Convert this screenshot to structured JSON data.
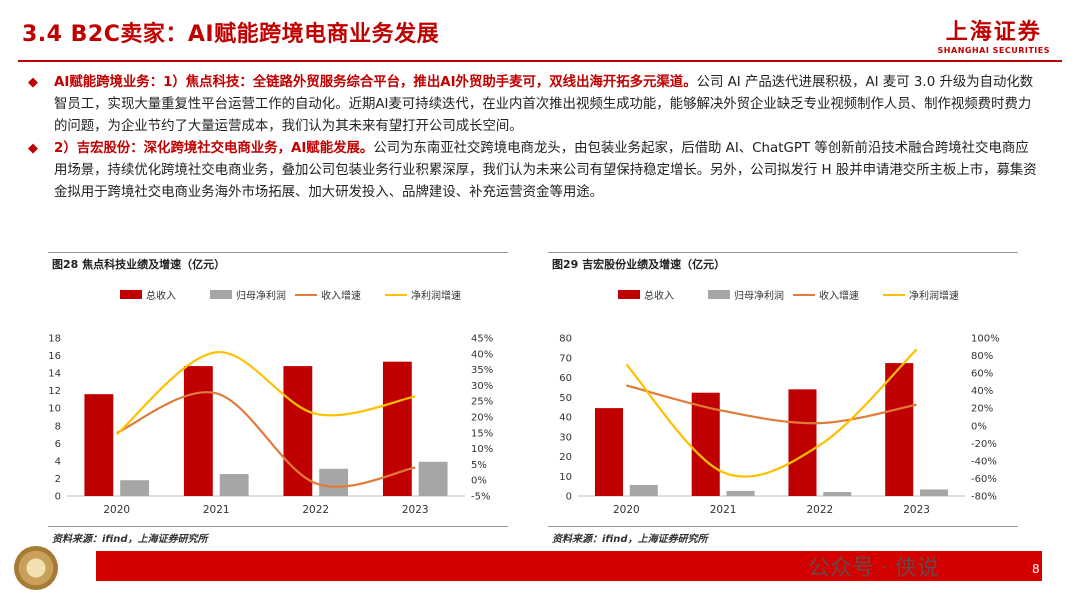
{
  "header": {
    "title": "3.4 B2C卖家：AI赋能跨境电商业务发展",
    "logo_cn": "上海证券",
    "logo_en": "SHANGHAI SECURITIES"
  },
  "paragraphs": [
    {
      "highlight": "AI赋能跨境业务：1）焦点科技：全链路外贸服务综合平台，推出AI外贸助手麦可，双线出海开拓多元渠道。",
      "text": "公司 AI 产品迭代进展积极，AI 麦可 3.0 升级为自动化数智员工，实现大量重复性平台运营工作的自动化。近期AI麦可持续迭代，在业内首次推出视频生成功能，能够解决外贸企业缺乏专业视频制作人员、制作视频费时费力的问题，为企业节约了大量运营成本，我们认为其未来有望打开公司成长空间。"
    },
    {
      "highlight": "2）吉宏股份：深化跨境社交电商业务，AI赋能发展。",
      "text": "公司为东南亚社交跨境电商龙头，由包装业务起家，后借助 AI、ChatGPT 等创新前沿技术融合跨境社交电商应用场景，持续优化跨境社交电商业务，叠加公司包装业务行业积累深厚，我们认为未来公司有望保持稳定增长。另外，公司拟发行 H 股并申请港交所主板上市，募集资金拟用于跨境社交电商业务海外市场拓展、加大研发投入、品牌建设、补充运营资金等用途。"
    }
  ],
  "figures": [
    {
      "title": "图28  焦点科技业绩及增速（亿元）",
      "source": "资料来源：ifind，上海证券研究所"
    },
    {
      "title": "图29  吉宏股份业绩及增速（亿元）",
      "source": "资料来源：ifind，上海证券研究所"
    }
  ],
  "footer": {
    "watermark": "公众号 · 侠说",
    "page": "8"
  },
  "chart_data": [
    {
      "type": "bar",
      "categories": [
        "2020",
        "2021",
        "2022",
        "2023"
      ],
      "series": [
        {
          "name": "总收入",
          "kind": "bar",
          "axis": "left",
          "color": "#c00000",
          "values": [
            11.6,
            14.8,
            14.8,
            15.3
          ]
        },
        {
          "name": "归母净利润",
          "kind": "bar",
          "axis": "left",
          "color": "#a6a6a6",
          "values": [
            1.8,
            2.5,
            3.1,
            3.9
          ]
        },
        {
          "name": "收入增速",
          "kind": "line",
          "axis": "right",
          "color": "#e07b39",
          "values": [
            15,
            27.5,
            -1,
            4
          ]
        },
        {
          "name": "净利润增速",
          "kind": "line",
          "axis": "right",
          "color": "#ffc000",
          "values": [
            14.5,
            40.5,
            21,
            26.5
          ]
        }
      ],
      "ylim_left": [
        0,
        18
      ],
      "yticks_left": [
        "0",
        "2",
        "4",
        "6",
        "8",
        "10",
        "12",
        "14",
        "16",
        "18"
      ],
      "ylim_right": [
        -5,
        45
      ],
      "yticks_right": [
        "-5%",
        "0%",
        "5%",
        "10%",
        "15%",
        "20%",
        "25%",
        "30%",
        "35%",
        "40%",
        "45%"
      ],
      "legend": "top"
    },
    {
      "type": "bar",
      "categories": [
        "2020",
        "2021",
        "2022",
        "2023"
      ],
      "series": [
        {
          "name": "总收入",
          "kind": "bar",
          "axis": "left",
          "color": "#c00000",
          "values": [
            44.5,
            52.3,
            54,
            67.3
          ]
        },
        {
          "name": "归母净利润",
          "kind": "bar",
          "axis": "left",
          "color": "#a6a6a6",
          "values": [
            5.6,
            2.6,
            2.0,
            3.3
          ]
        },
        {
          "name": "收入增速",
          "kind": "line",
          "axis": "right",
          "color": "#e07b39",
          "values": [
            46,
            17,
            3,
            24
          ]
        },
        {
          "name": "净利润增速",
          "kind": "line",
          "axis": "right",
          "color": "#ffc000",
          "values": [
            70,
            -53,
            -22,
            87
          ]
        }
      ],
      "ylim_left": [
        0,
        80
      ],
      "yticks_left": [
        "0",
        "10",
        "20",
        "30",
        "40",
        "50",
        "60",
        "70",
        "80"
      ],
      "ylim_right": [
        -80,
        100
      ],
      "yticks_right": [
        "-80%",
        "-60%",
        "-40%",
        "-20%",
        "0%",
        "20%",
        "40%",
        "60%",
        "80%",
        "100%"
      ],
      "legend": "top"
    }
  ]
}
